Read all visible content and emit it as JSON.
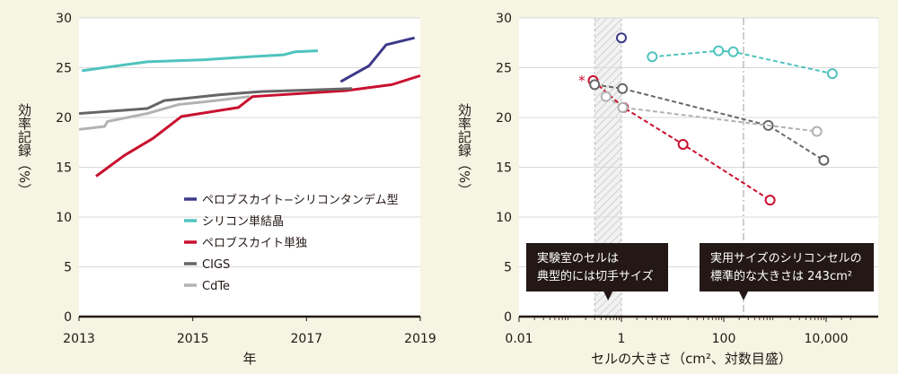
{
  "colors": {
    "background": "#f6f4e3",
    "plot_bg": "#ffffff",
    "tandem": "#3d3a8a",
    "silicon": "#4fc3bd",
    "perovskite": "#c8102e",
    "cigs": "#666666",
    "cdte": "#b2b2b2",
    "grid": "#d9d9d9",
    "callout_bg": "#231815"
  },
  "chart_data": [
    {
      "type": "line",
      "title": "",
      "xlabel": "年",
      "ylabel": "効率記録（%）",
      "xlim": [
        2013,
        2019
      ],
      "ylim": [
        0,
        30
      ],
      "x_ticks": [
        2013,
        2015,
        2017,
        2019
      ],
      "y_ticks": [
        0,
        5,
        10,
        15,
        20,
        25,
        30
      ],
      "grid": "horizontal",
      "legend_position": "bottom-right",
      "series": [
        {
          "name": "ペロブスカイト−シリコンタンデム型",
          "color": "#3d3a8a",
          "x": [
            2017.6,
            2018.1,
            2018.4,
            2018.9
          ],
          "y": [
            23.6,
            25.2,
            27.3,
            28.0
          ]
        },
        {
          "name": "シリコン単結晶",
          "color": "#4fc3bd",
          "x": [
            2013.05,
            2014.2,
            2015.2,
            2016.0,
            2016.6,
            2016.8,
            2017.2
          ],
          "y": [
            24.7,
            25.6,
            25.8,
            26.1,
            26.3,
            26.6,
            26.7
          ]
        },
        {
          "name": "ペロブスカイト単独",
          "color": "#c8102e",
          "x": [
            2013.3,
            2013.8,
            2014.3,
            2014.8,
            2015.8,
            2016.05,
            2017.7,
            2018.5,
            2019.0
          ],
          "y": [
            14.1,
            16.2,
            17.9,
            20.1,
            21.0,
            22.1,
            22.7,
            23.3,
            24.2
          ],
          "step_after": [
            0,
            0,
            0,
            0,
            0,
            0,
            0,
            0,
            0
          ]
        },
        {
          "name": "CIGS",
          "color": "#666666",
          "x": [
            2013.0,
            2014.2,
            2014.5,
            2015.5,
            2016.2,
            2017.8
          ],
          "y": [
            20.4,
            20.9,
            21.7,
            22.3,
            22.6,
            22.9
          ]
        },
        {
          "name": "CdTe",
          "color": "#b2b2b2",
          "x": [
            2013.0,
            2013.45,
            2013.5,
            2014.2,
            2014.75,
            2015.25,
            2016.0
          ],
          "y": [
            18.8,
            19.1,
            19.6,
            20.4,
            21.3,
            21.6,
            22.1
          ]
        }
      ]
    },
    {
      "type": "scatter",
      "title": "",
      "xlabel": "セルの大きさ（cm²、対数目盛）",
      "ylabel": "効率記録（%）",
      "x_scale": "log",
      "xlim": [
        0.01,
        30000
      ],
      "ylim": [
        0,
        30
      ],
      "x_ticks": [
        0.01,
        1,
        100,
        10000
      ],
      "x_tick_labels": [
        "0.01",
        "1",
        "100",
        "10,000"
      ],
      "y_ticks": [
        0,
        5,
        10,
        15,
        20,
        25,
        30
      ],
      "grid": "horizontal",
      "shaded_region_x": [
        0.3,
        1
      ],
      "reference_line_x": 243,
      "star_marker": {
        "text": "*",
        "x": 0.2,
        "y": 23.8
      },
      "series": [
        {
          "color": "#3d3a8a",
          "x": [
            1
          ],
          "y": [
            28.0
          ],
          "dashed": false
        },
        {
          "color": "#4fc3bd",
          "x": [
            4,
            79,
            153,
            13200
          ],
          "y": [
            26.1,
            26.7,
            26.6,
            24.4
          ],
          "dashed": true
        },
        {
          "color": "#c8102e",
          "x": [
            0.28,
            1.1,
            16,
            804
          ],
          "y": [
            23.7,
            21.0,
            17.3,
            11.7
          ],
          "dashed": true
        },
        {
          "color": "#666666",
          "x": [
            0.3,
            1.05,
            740,
            9000
          ],
          "y": [
            23.3,
            22.9,
            19.2,
            15.7
          ],
          "dashed": true
        },
        {
          "color": "#b2b2b2",
          "x": [
            0.5,
            1.06,
            6600
          ],
          "y": [
            22.1,
            21.0,
            18.6
          ],
          "dashed": true
        }
      ],
      "callouts": [
        {
          "lines": [
            "実験室のセルは",
            "典型的には切手サイズ"
          ],
          "target_x": 0.55
        },
        {
          "lines": [
            "実用サイズのシリコンセルの",
            "標準的な大きさは 243cm²"
          ],
          "target_x": 243
        }
      ]
    }
  ]
}
